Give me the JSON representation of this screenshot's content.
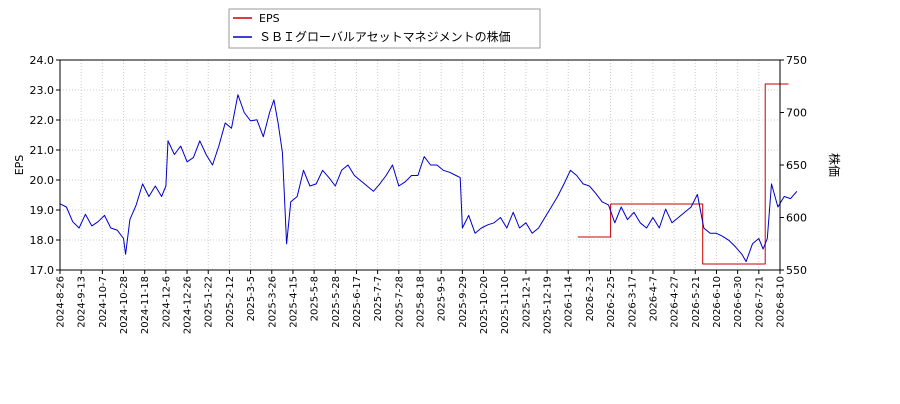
{
  "chart_data": {
    "type": "line",
    "legend": {
      "position": "top-left",
      "entries": [
        {
          "label": "EPS",
          "color": "#cc0000"
        },
        {
          "label": "ＳＢＩグローバルアセットマネジメントの株価",
          "color": "#0000cc"
        }
      ]
    },
    "left_axis": {
      "label": "EPS",
      "ylim": [
        17.0,
        24.0
      ],
      "ticks": [
        "17.0",
        "18.0",
        "19.0",
        "20.0",
        "21.0",
        "22.0",
        "23.0",
        "24.0"
      ]
    },
    "right_axis": {
      "label": "株価",
      "ylim": [
        550,
        750
      ],
      "ticks": [
        "550",
        "600",
        "650",
        "700",
        "750"
      ]
    },
    "x_tick_labels": [
      "2024-8-26",
      "2024-9-13",
      "2024-10-7",
      "2024-10-28",
      "2024-11-18",
      "2024-12-6",
      "2024-12-26",
      "2025-1-22",
      "2025-2-12",
      "2025-3-5",
      "2025-3-26",
      "2025-4-15",
      "2025-5-8",
      "2025-5-28",
      "2025-6-17",
      "2025-7-7",
      "2025-7-28",
      "2025-8-18",
      "2025-9-5",
      "2025-9-29",
      "2025-10-20",
      "2025-11-10",
      "2025-12-1",
      "2025-12-19",
      "2026-1-14",
      "2026-2-3",
      "2026-2-25",
      "2026-3-17",
      "2026-4-7",
      "2026-4-27",
      "2026-5-21",
      "2026-6-10",
      "2026-6-30",
      "2026-7-21",
      "2026-8-10"
    ],
    "grid": true,
    "series": [
      {
        "name": "EPS",
        "axis": "left",
        "color": "#cc0000",
        "step": true,
        "points": [
          {
            "tick": 24.45,
            "value": 18.1
          },
          {
            "tick": 26.0,
            "value": 18.1
          },
          {
            "tick": 26.0,
            "value": 19.2
          },
          {
            "tick": 30.35,
            "value": 19.2
          },
          {
            "tick": 30.35,
            "value": 17.2
          },
          {
            "tick": 33.3,
            "value": 17.2
          },
          {
            "tick": 33.3,
            "value": 23.2
          },
          {
            "tick": 34.4,
            "value": 23.2
          }
        ]
      },
      {
        "name": "ＳＢＩグローバルアセットマネジメントの株価",
        "axis": "right",
        "color": "#0000cc",
        "points": [
          {
            "tick": 0.0,
            "value": 613
          },
          {
            "tick": 0.3,
            "value": 610
          },
          {
            "tick": 0.6,
            "value": 596
          },
          {
            "tick": 0.9,
            "value": 590
          },
          {
            "tick": 1.2,
            "value": 603
          },
          {
            "tick": 1.5,
            "value": 592
          },
          {
            "tick": 1.8,
            "value": 596
          },
          {
            "tick": 2.1,
            "value": 602
          },
          {
            "tick": 2.4,
            "value": 590
          },
          {
            "tick": 2.7,
            "value": 588
          },
          {
            "tick": 3.0,
            "value": 580
          },
          {
            "tick": 3.1,
            "value": 565
          },
          {
            "tick": 3.3,
            "value": 598
          },
          {
            "tick": 3.6,
            "value": 612
          },
          {
            "tick": 3.9,
            "value": 632
          },
          {
            "tick": 4.2,
            "value": 620
          },
          {
            "tick": 4.5,
            "value": 630
          },
          {
            "tick": 4.8,
            "value": 620
          },
          {
            "tick": 5.0,
            "value": 630
          },
          {
            "tick": 5.1,
            "value": 673
          },
          {
            "tick": 5.4,
            "value": 660
          },
          {
            "tick": 5.7,
            "value": 668
          },
          {
            "tick": 6.0,
            "value": 653
          },
          {
            "tick": 6.3,
            "value": 657
          },
          {
            "tick": 6.6,
            "value": 673
          },
          {
            "tick": 6.9,
            "value": 660
          },
          {
            "tick": 7.2,
            "value": 650
          },
          {
            "tick": 7.5,
            "value": 668
          },
          {
            "tick": 7.8,
            "value": 690
          },
          {
            "tick": 8.1,
            "value": 685
          },
          {
            "tick": 8.4,
            "value": 717
          },
          {
            "tick": 8.7,
            "value": 700
          },
          {
            "tick": 9.0,
            "value": 692
          },
          {
            "tick": 9.3,
            "value": 693
          },
          {
            "tick": 9.6,
            "value": 677
          },
          {
            "tick": 9.9,
            "value": 700
          },
          {
            "tick": 10.1,
            "value": 712
          },
          {
            "tick": 10.3,
            "value": 690
          },
          {
            "tick": 10.5,
            "value": 662
          },
          {
            "tick": 10.7,
            "value": 575
          },
          {
            "tick": 10.9,
            "value": 615
          },
          {
            "tick": 11.2,
            "value": 620
          },
          {
            "tick": 11.5,
            "value": 645
          },
          {
            "tick": 11.8,
            "value": 630
          },
          {
            "tick": 12.1,
            "value": 632
          },
          {
            "tick": 12.4,
            "value": 645
          },
          {
            "tick": 12.7,
            "value": 638
          },
          {
            "tick": 13.0,
            "value": 630
          },
          {
            "tick": 13.3,
            "value": 645
          },
          {
            "tick": 13.6,
            "value": 650
          },
          {
            "tick": 13.9,
            "value": 640
          },
          {
            "tick": 14.2,
            "value": 635
          },
          {
            "tick": 14.5,
            "value": 630
          },
          {
            "tick": 14.8,
            "value": 625
          },
          {
            "tick": 15.1,
            "value": 632
          },
          {
            "tick": 15.4,
            "value": 640
          },
          {
            "tick": 15.7,
            "value": 650
          },
          {
            "tick": 16.0,
            "value": 630
          },
          {
            "tick": 16.3,
            "value": 634
          },
          {
            "tick": 16.6,
            "value": 640
          },
          {
            "tick": 16.9,
            "value": 640
          },
          {
            "tick": 17.2,
            "value": 658
          },
          {
            "tick": 17.5,
            "value": 650
          },
          {
            "tick": 17.8,
            "value": 650
          },
          {
            "tick": 18.1,
            "value": 645
          },
          {
            "tick": 18.4,
            "value": 643
          },
          {
            "tick": 18.7,
            "value": 640
          },
          {
            "tick": 18.9,
            "value": 638
          },
          {
            "tick": 19.0,
            "value": 590
          },
          {
            "tick": 19.3,
            "value": 602
          },
          {
            "tick": 19.6,
            "value": 585
          },
          {
            "tick": 19.9,
            "value": 590
          },
          {
            "tick": 20.2,
            "value": 593
          },
          {
            "tick": 20.5,
            "value": 595
          },
          {
            "tick": 20.8,
            "value": 600
          },
          {
            "tick": 21.1,
            "value": 590
          },
          {
            "tick": 21.4,
            "value": 605
          },
          {
            "tick": 21.7,
            "value": 590
          },
          {
            "tick": 22.0,
            "value": 595
          },
          {
            "tick": 22.3,
            "value": 585
          },
          {
            "tick": 22.6,
            "value": 590
          },
          {
            "tick": 22.9,
            "value": 600
          },
          {
            "tick": 23.2,
            "value": 610
          },
          {
            "tick": 23.5,
            "value": 620
          },
          {
            "tick": 23.8,
            "value": 632
          },
          {
            "tick": 24.1,
            "value": 645
          },
          {
            "tick": 24.4,
            "value": 640
          },
          {
            "tick": 24.7,
            "value": 632
          },
          {
            "tick": 25.0,
            "value": 630
          },
          {
            "tick": 25.3,
            "value": 623
          },
          {
            "tick": 25.6,
            "value": 615
          },
          {
            "tick": 25.9,
            "value": 612
          },
          {
            "tick": 26.2,
            "value": 595
          },
          {
            "tick": 26.5,
            "value": 610
          },
          {
            "tick": 26.8,
            "value": 598
          },
          {
            "tick": 27.1,
            "value": 605
          },
          {
            "tick": 27.4,
            "value": 595
          },
          {
            "tick": 27.7,
            "value": 590
          },
          {
            "tick": 28.0,
            "value": 600
          },
          {
            "tick": 28.3,
            "value": 590
          },
          {
            "tick": 28.6,
            "value": 608
          },
          {
            "tick": 28.9,
            "value": 595
          },
          {
            "tick": 29.2,
            "value": 600
          },
          {
            "tick": 29.5,
            "value": 605
          },
          {
            "tick": 29.8,
            "value": 610
          },
          {
            "tick": 30.1,
            "value": 622
          },
          {
            "tick": 30.4,
            "value": 590
          },
          {
            "tick": 30.7,
            "value": 585
          },
          {
            "tick": 31.0,
            "value": 585
          },
          {
            "tick": 31.3,
            "value": 582
          },
          {
            "tick": 31.6,
            "value": 578
          },
          {
            "tick": 31.9,
            "value": 572
          },
          {
            "tick": 32.2,
            "value": 565
          },
          {
            "tick": 32.4,
            "value": 558
          },
          {
            "tick": 32.7,
            "value": 575
          },
          {
            "tick": 33.0,
            "value": 580
          },
          {
            "tick": 33.2,
            "value": 570
          },
          {
            "tick": 33.4,
            "value": 580
          },
          {
            "tick": 33.6,
            "value": 632
          },
          {
            "tick": 33.9,
            "value": 610
          },
          {
            "tick": 34.2,
            "value": 620
          },
          {
            "tick": 34.5,
            "value": 618
          },
          {
            "tick": 34.8,
            "value": 625
          }
        ]
      }
    ]
  }
}
